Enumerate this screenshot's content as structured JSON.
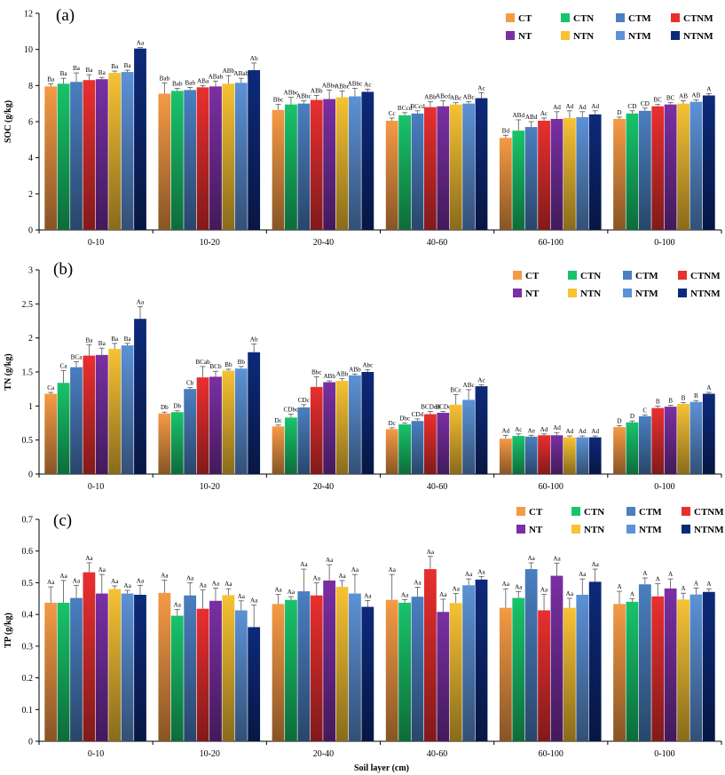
{
  "colors": {
    "CT": "#f59a45",
    "CTN": "#18c46a",
    "CTM": "#4a7fc1",
    "CTNM": "#ea2f2f",
    "NT": "#7a2fa3",
    "NTN": "#f7c233",
    "NTM": "#5c92d6",
    "NTNM": "#0d2a7a"
  },
  "xlabel": "Soil layer (cm)",
  "chart_data": [
    {
      "type": "bar",
      "panel_label": "(a)",
      "ylabel": "SOC (g/kg)",
      "ylim": [
        0,
        12
      ],
      "yticks": [
        "0",
        "2",
        "4",
        "6",
        "8",
        "10",
        "12"
      ],
      "categories": [
        "0-10",
        "10-20",
        "20-40",
        "40-60",
        "60-100",
        "0-100"
      ],
      "legend": [
        "CT",
        "CTN",
        "CTM",
        "CTNM",
        "NT",
        "NTN",
        "NTM",
        "NTNM"
      ],
      "series": [
        {
          "name": "CT",
          "values": [
            7.95,
            7.55,
            6.65,
            6.05,
            5.1,
            6.15
          ],
          "errors": [
            0.15,
            0.6,
            0.3,
            0.15,
            0.15,
            0.1
          ],
          "labels": [
            "Ba",
            "Bab",
            "Bbc",
            "Cc",
            "Bd",
            "D"
          ]
        },
        {
          "name": "CTN",
          "values": [
            8.1,
            7.7,
            6.95,
            6.35,
            5.5,
            6.45
          ],
          "errors": [
            0.3,
            0.15,
            0.4,
            0.15,
            0.6,
            0.15
          ],
          "labels": [
            "Ba",
            "Bab",
            "ABbc",
            "BCcd",
            "ABd",
            "CD"
          ]
        },
        {
          "name": "CTM",
          "values": [
            8.2,
            7.75,
            7.0,
            6.45,
            5.7,
            6.6
          ],
          "errors": [
            0.5,
            0.15,
            0.15,
            0.15,
            0.3,
            0.15
          ],
          "labels": [
            "Ba",
            "Bab",
            "ABbc",
            "BCcd",
            "ABd",
            "CD"
          ]
        },
        {
          "name": "CTNM",
          "values": [
            8.3,
            7.9,
            7.2,
            6.8,
            6.05,
            6.85
          ],
          "errors": [
            0.3,
            0.1,
            0.25,
            0.3,
            0.15,
            0.1
          ],
          "labels": [
            "Ba",
            "ABa",
            "ABb",
            "ABb",
            "Ac",
            "BC"
          ]
        },
        {
          "name": "NT",
          "values": [
            8.35,
            7.95,
            7.25,
            6.85,
            6.15,
            6.95
          ],
          "errors": [
            0.1,
            0.3,
            0.5,
            0.3,
            0.4,
            0.1
          ],
          "labels": [
            "Ba",
            "ABab",
            "ABbc",
            "ABcd",
            "Ad",
            "BC"
          ]
        },
        {
          "name": "NTN",
          "values": [
            8.7,
            8.1,
            7.35,
            6.95,
            6.2,
            7.0
          ],
          "errors": [
            0.1,
            0.45,
            0.35,
            0.1,
            0.4,
            0.15
          ],
          "labels": [
            "Ba",
            "ABb",
            "ABbc",
            "ABc",
            "Ad",
            "AB"
          ]
        },
        {
          "name": "NTM",
          "values": [
            8.75,
            8.15,
            7.4,
            7.0,
            6.25,
            7.1
          ],
          "errors": [
            0.1,
            0.25,
            0.45,
            0.1,
            0.3,
            0.1
          ],
          "labels": [
            "Ba",
            "ABab",
            "ABbc",
            "ABc",
            "Ad",
            "AB"
          ]
        },
        {
          "name": "NTNM",
          "values": [
            10.05,
            8.85,
            7.65,
            7.3,
            6.4,
            7.45
          ],
          "errors": [
            0.05,
            0.4,
            0.15,
            0.3,
            0.2,
            0.1
          ],
          "labels": [
            "Aa",
            "Ab",
            "Ac",
            "Ac",
            "Ad",
            "A"
          ]
        }
      ]
    },
    {
      "type": "bar",
      "panel_label": "(b)",
      "ylabel": "TN (g/kg)",
      "ylim": [
        0,
        3
      ],
      "yticks": [
        "0",
        "0.5",
        "1",
        "1.5",
        "2",
        "2.5",
        "3"
      ],
      "categories": [
        "0-10",
        "10-20",
        "20-40",
        "40-60",
        "60-100",
        "0-100"
      ],
      "legend": [
        "CT",
        "CTN",
        "CTM",
        "CTNM",
        "NT",
        "NTN",
        "NTM",
        "NTNM"
      ],
      "series": [
        {
          "name": "CT",
          "values": [
            1.18,
            0.89,
            0.7,
            0.66,
            0.52,
            0.69
          ],
          "errors": [
            0.02,
            0.02,
            0.02,
            0.02,
            0.05,
            0.02
          ],
          "labels": [
            "Ca",
            "Db",
            "Dc",
            "Dc",
            "Ad",
            "D"
          ]
        },
        {
          "name": "CTN",
          "values": [
            1.34,
            0.91,
            0.83,
            0.73,
            0.56,
            0.76
          ],
          "errors": [
            0.18,
            0.02,
            0.05,
            0.02,
            0.03,
            0.02
          ],
          "labels": [
            "Ca",
            "Db",
            "CDbc",
            "Dbc",
            "Ac",
            "D"
          ]
        },
        {
          "name": "CTM",
          "values": [
            1.57,
            1.25,
            0.98,
            0.78,
            0.55,
            0.85
          ],
          "errors": [
            0.08,
            0.02,
            0.04,
            0.03,
            0.02,
            0.02
          ],
          "labels": [
            "BCa",
            "Cb",
            "CDc",
            "CDd",
            "Ae",
            "C"
          ]
        },
        {
          "name": "CTNM",
          "values": [
            1.74,
            1.42,
            1.28,
            0.88,
            0.57,
            0.97
          ],
          "errors": [
            0.16,
            0.16,
            0.15,
            0.04,
            0.02,
            0.03
          ],
          "labels": [
            "Ba",
            "BCab",
            "Bbc",
            "BCDcd",
            "Ad",
            "B"
          ]
        },
        {
          "name": "NT",
          "values": [
            1.75,
            1.43,
            1.35,
            0.9,
            0.57,
            0.99
          ],
          "errors": [
            0.1,
            0.08,
            0.02,
            0.02,
            0.04,
            0.02
          ],
          "labels": [
            "Ba",
            "BCb",
            "ABb",
            "BCDc",
            "Ad",
            "B"
          ]
        },
        {
          "name": "NTN",
          "values": [
            1.84,
            1.52,
            1.37,
            1.02,
            0.54,
            1.03
          ],
          "errors": [
            0.08,
            0.02,
            0.03,
            0.15,
            0.02,
            0.02
          ],
          "labels": [
            "Ba",
            "Bb",
            "ABb",
            "BCc",
            "Ad",
            "B"
          ]
        },
        {
          "name": "NTM",
          "values": [
            1.89,
            1.55,
            1.45,
            1.09,
            0.54,
            1.06
          ],
          "errors": [
            0.03,
            0.03,
            0.02,
            0.15,
            0.02,
            0.02
          ],
          "labels": [
            "Ba",
            "Bb",
            "ABb",
            "ABc",
            "Ad",
            "B"
          ]
        },
        {
          "name": "NTNM",
          "values": [
            2.28,
            1.79,
            1.5,
            1.29,
            0.54,
            1.18
          ],
          "errors": [
            0.18,
            0.12,
            0.03,
            0.02,
            0.02,
            0.02
          ],
          "labels": [
            "Aa",
            "Ab",
            "Abc",
            "Ac",
            "Ad",
            "A"
          ]
        }
      ]
    },
    {
      "type": "bar",
      "panel_label": "(c)",
      "ylabel": "TP (g/kg)",
      "ylim": [
        0,
        0.7
      ],
      "yticks": [
        "0",
        "0.1",
        "0.2",
        "0.3",
        "0.4",
        "0.5",
        "0.6",
        "0.7"
      ],
      "categories": [
        "0-10",
        "10-20",
        "20-40",
        "40-60",
        "60-100",
        "0-100"
      ],
      "legend": [
        "CT",
        "CTN",
        "CTM",
        "CTNM",
        "NT",
        "NTN",
        "NTM",
        "NTNM"
      ],
      "series": [
        {
          "name": "CT",
          "values": [
            0.437,
            0.468,
            0.433,
            0.446,
            0.421,
            0.433
          ],
          "errors": [
            0.05,
            0.04,
            0.03,
            0.08,
            0.06,
            0.04
          ],
          "labels": [
            "Aa",
            "Aa",
            "Aa",
            "Aa",
            "Aa",
            "A"
          ]
        },
        {
          "name": "CTN",
          "values": [
            0.437,
            0.396,
            0.446,
            0.437,
            0.452,
            0.44
          ],
          "errors": [
            0.07,
            0.02,
            0.01,
            0.01,
            0.02,
            0.01
          ],
          "labels": [
            "Aa",
            "Aa",
            "Aa",
            "Aa",
            "Aa",
            "A"
          ]
        },
        {
          "name": "CTM",
          "values": [
            0.452,
            0.46,
            0.473,
            0.456,
            0.543,
            0.495
          ],
          "errors": [
            0.04,
            0.04,
            0.07,
            0.03,
            0.02,
            0.02
          ],
          "labels": [
            "Aa",
            "Aa",
            "Aa",
            "Aa",
            "Aa",
            "A"
          ]
        },
        {
          "name": "CTNM",
          "values": [
            0.533,
            0.418,
            0.46,
            0.543,
            0.413,
            0.457
          ],
          "errors": [
            0.03,
            0.06,
            0.04,
            0.04,
            0.05,
            0.04
          ],
          "labels": [
            "Aa",
            "Aa",
            "Aa",
            "Aa",
            "Aa",
            "A"
          ]
        },
        {
          "name": "NT",
          "values": [
            0.466,
            0.443,
            0.507,
            0.408,
            0.522,
            0.482
          ],
          "errors": [
            0.06,
            0.04,
            0.05,
            0.04,
            0.04,
            0.03
          ],
          "labels": [
            "Aa",
            "Aa",
            "Aa",
            "Aa",
            "Aa",
            "A"
          ]
        },
        {
          "name": "NTN",
          "values": [
            0.48,
            0.461,
            0.487,
            0.436,
            0.421,
            0.447
          ],
          "errors": [
            0.01,
            0.02,
            0.02,
            0.03,
            0.03,
            0.02
          ],
          "labels": [
            "Aa",
            "Aa",
            "Aa",
            "Aa",
            "Aa",
            "A"
          ]
        },
        {
          "name": "NTM",
          "values": [
            0.466,
            0.413,
            0.466,
            0.492,
            0.462,
            0.463
          ],
          "errors": [
            0.01,
            0.03,
            0.06,
            0.02,
            0.05,
            0.02
          ],
          "labels": [
            "Aa",
            "Aa",
            "Aa",
            "Aa",
            "Aa",
            "A"
          ]
        },
        {
          "name": "NTNM",
          "values": [
            0.462,
            0.36,
            0.424,
            0.51,
            0.503,
            0.471
          ],
          "errors": [
            0.03,
            0.07,
            0.02,
            0.01,
            0.04,
            0.01
          ],
          "labels": [
            "Aa",
            "Aa",
            "Aa",
            "Aa",
            "Aa",
            "A"
          ]
        }
      ]
    }
  ]
}
